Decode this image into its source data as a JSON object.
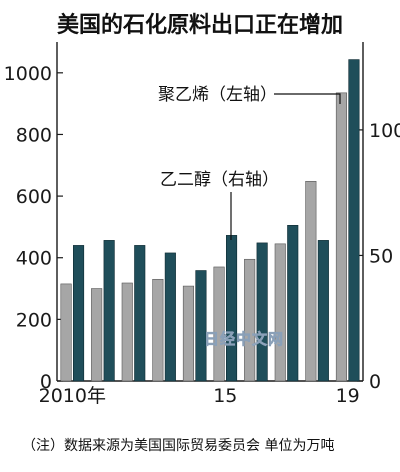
{
  "chart_data": {
    "type": "bar",
    "title": "美国的石化原料出口正在增加",
    "categories": [
      "2010年",
      "",
      "",
      "",
      "",
      "15",
      "",
      "",
      "",
      "19"
    ],
    "series": [
      {
        "name": "聚乙烯（左轴）",
        "axis": "left",
        "color": "#a6a6a6",
        "values": [
          315,
          300,
          318,
          330,
          308,
          370,
          395,
          445,
          648,
          935
        ]
      },
      {
        "name": "乙二醇（右轴）",
        "axis": "right",
        "color": "#1f4e5a",
        "values": [
          54,
          56,
          54,
          51,
          44,
          58,
          55,
          62,
          56,
          128
        ]
      }
    ],
    "left_axis": {
      "ylim": [
        0,
        1100
      ],
      "ticks": [
        0,
        200,
        400,
        600,
        800,
        1000
      ],
      "tick_labels": [
        "0",
        "200",
        "400",
        "600",
        "800",
        "1000"
      ]
    },
    "right_axis": {
      "ylim": [
        0,
        135
      ],
      "ticks": [
        0,
        50,
        100
      ],
      "tick_labels": [
        "0",
        "50",
        "100"
      ]
    },
    "annotations": [
      "聚乙烯（左轴）",
      "乙二醇（右轴）"
    ],
    "note": "（注）数据来源为美国国际贸易委员会 单位为万吨",
    "watermark": "日经中文网",
    "grid": false,
    "colors": {
      "light": "#a6a6a6",
      "dark": "#1f4e5a",
      "axis": "#1a1a1a"
    }
  }
}
